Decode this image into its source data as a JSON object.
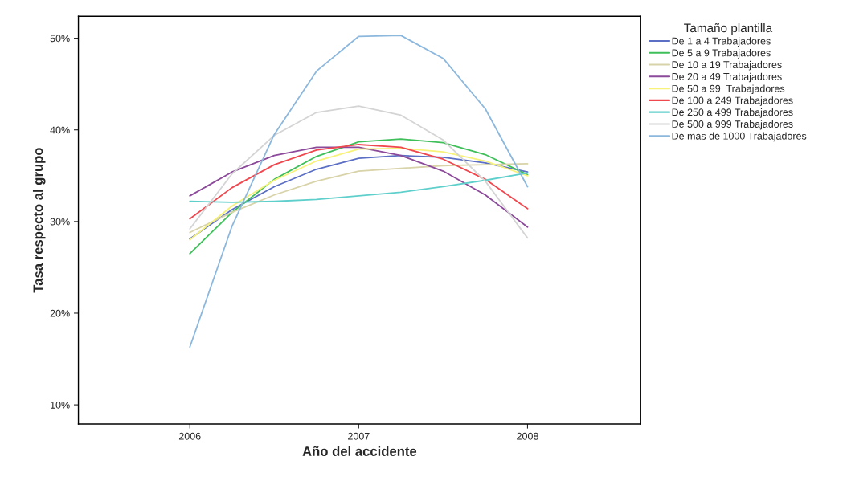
{
  "chart_data": {
    "type": "line",
    "xlabel": "Año del accidente",
    "ylabel": "Tasa respecto al grupo",
    "legend_title": "Tamaño plantilla",
    "legend": "right",
    "grid": false,
    "marker": "none",
    "line_style": "solid",
    "x": [
      2006,
      2006.25,
      2006.5,
      2006.75,
      2007,
      2007.25,
      2007.5,
      2007.75,
      2008
    ],
    "xlim": [
      2005.34,
      2008.67
    ],
    "xticks": [
      2006,
      2007,
      2008
    ],
    "ylim": [
      7.9,
      52.4
    ],
    "yticks": [
      {
        "value": 10,
        "label": "10%"
      },
      {
        "value": 20,
        "label": "20%"
      },
      {
        "value": 30,
        "label": "30%"
      },
      {
        "value": 40,
        "label": "40%"
      },
      {
        "value": 50,
        "label": "50%"
      }
    ],
    "series": [
      {
        "name": "De 1 a 4 Trabajadores",
        "color": "#5b6fc4",
        "values": [
          28.1,
          31.3,
          33.8,
          35.7,
          36.9,
          37.2,
          37.0,
          36.4,
          35.4
        ]
      },
      {
        "name": "De 5 a 9 Trabajadores",
        "color": "#3fbf5a",
        "values": [
          26.5,
          31.0,
          34.6,
          37.1,
          38.7,
          39.0,
          38.6,
          37.3,
          35.1
        ]
      },
      {
        "name": "De 10 a 19 Trabajadores",
        "color": "#d8d3a8",
        "values": [
          28.8,
          31.0,
          32.9,
          34.4,
          35.5,
          35.8,
          36.1,
          36.2,
          36.3
        ]
      },
      {
        "name": "De 20 a 49 Trabajadores",
        "color": "#8c4a9a",
        "values": [
          32.8,
          35.4,
          37.2,
          38.1,
          38.1,
          37.2,
          35.5,
          32.9,
          29.4
        ]
      },
      {
        "name": "De 50 a 99  Trabajadores",
        "color": "#f7f27a",
        "values": [
          28.0,
          31.7,
          34.5,
          36.6,
          37.9,
          38.0,
          37.6,
          36.6,
          35.0
        ]
      },
      {
        "name": "De 100 a 249 Trabajadores",
        "color": "#f0484f",
        "values": [
          30.3,
          33.7,
          36.2,
          37.8,
          38.4,
          38.1,
          36.8,
          34.6,
          31.4
        ]
      },
      {
        "name": "De 250 a 499 Trabajadores",
        "color": "#5fcfcc",
        "values": [
          32.2,
          32.1,
          32.2,
          32.4,
          32.8,
          33.2,
          33.8,
          34.5,
          35.3
        ]
      },
      {
        "name": "De 500 a 999 Trabajadores",
        "color": "#d4d4d4",
        "values": [
          29.2,
          35.2,
          39.4,
          41.9,
          42.6,
          41.6,
          38.9,
          34.4,
          28.2
        ]
      },
      {
        "name": "De mas de 1000 Trabajadores",
        "color": "#8db8de",
        "values": [
          16.3,
          29.5,
          39.5,
          46.4,
          50.2,
          50.3,
          47.8,
          42.3,
          33.8
        ]
      }
    ]
  }
}
